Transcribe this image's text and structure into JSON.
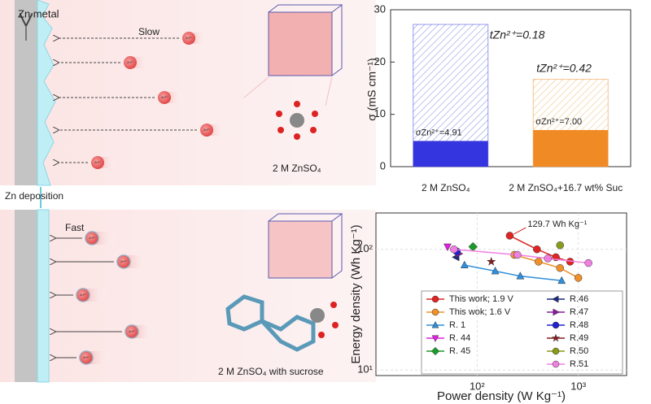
{
  "diagram": {
    "top": {
      "electrode_label": "Zn metal",
      "speed_label": "Slow",
      "electrolyte_label": "2 M ZnSO₄"
    },
    "middle_label": "Zn deposition",
    "bottom": {
      "speed_label": "Fast",
      "electrolyte_label": "2 M ZnSO₄ with sucrose"
    },
    "ion_label": "Zn²⁺"
  },
  "chart_data": [
    {
      "type": "bar",
      "categories": [
        "2 M ZnSO₄",
        "2 M ZnSO₄+16.7 wt% Suc"
      ],
      "ylabel": "σ (mS cm⁻¹)",
      "values": [
        27.2,
        16.7
      ],
      "zn_values": [
        4.91,
        7.0
      ],
      "zn_value_labels": [
        "σZn²⁺=4.91",
        "σZn²⁺=7.00"
      ],
      "transference_labels": [
        "tZn²⁺=0.18",
        "tZn²⁺=0.42"
      ],
      "colors": [
        "#3535e0",
        "#f08a24"
      ],
      "ylim": [
        0,
        30
      ],
      "yticks": [
        0,
        10,
        20,
        30
      ]
    },
    {
      "type": "line",
      "xlabel": "Power density (W Kg⁻¹)",
      "ylabel": "Energy density (Wh Kg⁻¹)",
      "xlog": true,
      "ylog": true,
      "xlim": [
        10,
        3000
      ],
      "ylim": [
        9,
        200
      ],
      "xticks": [
        {
          "value": 100,
          "label": "10²"
        },
        {
          "value": 1000,
          "label": "10³"
        }
      ],
      "yticks": [
        {
          "value": 10,
          "label": "10¹"
        },
        {
          "value": 100,
          "label": "10²"
        }
      ],
      "grid": true,
      "legend": "lower",
      "annotation": "129.7 Wh Kg⁻¹",
      "series": [
        {
          "name": "This work; 1.9 V",
          "color": "#e02424",
          "marker": "circle",
          "x": [
            210,
            390,
            600,
            830
          ],
          "values": [
            129.7,
            100,
            86,
            79
          ]
        },
        {
          "name": "This wok; 1.6 V",
          "color": "#f0902a",
          "marker": "circle",
          "x": [
            233,
            404,
            660,
            1000
          ],
          "values": [
            90,
            79,
            70,
            58
          ]
        },
        {
          "name": "R. 1",
          "color": "#2f8fdc",
          "marker": "triangle-up",
          "x": [
            75,
            151,
            267,
            685
          ],
          "values": [
            74,
            66,
            60,
            55
          ]
        },
        {
          "name": "R. 44",
          "color": "#e020e0",
          "marker": "triangle-down",
          "x": [
            51
          ],
          "values": [
            105
          ]
        },
        {
          "name": "R. 45",
          "color": "#1a9a2a",
          "marker": "diamond",
          "x": [
            91
          ],
          "values": [
            105
          ]
        },
        {
          "name": "R.46",
          "color": "#1a2a80",
          "marker": "triangle-left",
          "x": [
            62
          ],
          "values": [
            86
          ]
        },
        {
          "name": "R.47",
          "color": "#8a1aa0",
          "marker": "triangle-right",
          "x": [
            66
          ],
          "values": [
            92
          ]
        },
        {
          "name": "R.48",
          "color": "#2222d0",
          "marker": "circle",
          "x": [
            63
          ],
          "values": [
            96
          ]
        },
        {
          "name": "R.49",
          "color": "#8a1a1a",
          "marker": "star",
          "x": [
            138
          ],
          "values": [
            79
          ]
        },
        {
          "name": "R.50",
          "color": "#8a9a1a",
          "marker": "circle",
          "x": [
            660
          ],
          "values": [
            108
          ]
        },
        {
          "name": "R.51",
          "color": "#f080e0",
          "marker": "circle",
          "x": [
            59,
            250,
            500,
            1260
          ],
          "values": [
            100,
            90,
            84,
            77
          ]
        }
      ]
    }
  ]
}
